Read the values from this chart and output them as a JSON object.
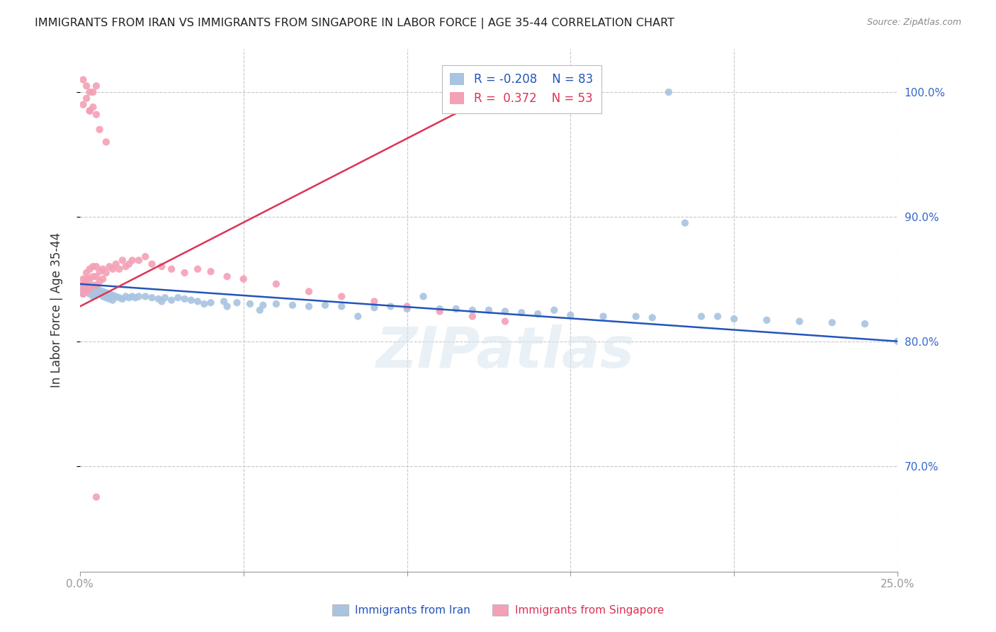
{
  "title": "IMMIGRANTS FROM IRAN VS IMMIGRANTS FROM SINGAPORE IN LABOR FORCE | AGE 35-44 CORRELATION CHART",
  "source": "Source: ZipAtlas.com",
  "ylabel": "In Labor Force | Age 35-44",
  "ytick_labels": [
    "100.0%",
    "90.0%",
    "80.0%",
    "70.0%"
  ],
  "ytick_values": [
    1.0,
    0.9,
    0.8,
    0.7
  ],
  "xlim": [
    0.0,
    0.25
  ],
  "ylim": [
    0.615,
    1.035
  ],
  "iran_color": "#a8c4e0",
  "singapore_color": "#f4a0b5",
  "iran_line_color": "#2255bb",
  "singapore_line_color": "#dd3355",
  "watermark": "ZIPatlas",
  "legend_iran_r": "-0.208",
  "legend_iran_n": "83",
  "legend_singapore_r": "0.372",
  "legend_singapore_n": "53",
  "iran_trend_x": [
    0.0,
    0.25
  ],
  "iran_trend_y": [
    0.846,
    0.8
  ],
  "singapore_trend_x": [
    0.0,
    0.135
  ],
  "singapore_trend_y": [
    0.828,
    1.01
  ],
  "iran_x": [
    0.001,
    0.001,
    0.001,
    0.002,
    0.002,
    0.002,
    0.003,
    0.003,
    0.003,
    0.004,
    0.004,
    0.004,
    0.005,
    0.005,
    0.005,
    0.006,
    0.006,
    0.007,
    0.007,
    0.008,
    0.008,
    0.009,
    0.009,
    0.01,
    0.01,
    0.011,
    0.012,
    0.013,
    0.014,
    0.015,
    0.016,
    0.017,
    0.018,
    0.02,
    0.022,
    0.024,
    0.026,
    0.028,
    0.03,
    0.032,
    0.034,
    0.036,
    0.04,
    0.044,
    0.048,
    0.052,
    0.056,
    0.06,
    0.065,
    0.07,
    0.075,
    0.08,
    0.09,
    0.1,
    0.11,
    0.12,
    0.13,
    0.14,
    0.15,
    0.16,
    0.17,
    0.175,
    0.18,
    0.19,
    0.2,
    0.21,
    0.22,
    0.23,
    0.24,
    0.25,
    0.185,
    0.195,
    0.145,
    0.105,
    0.095,
    0.085,
    0.055,
    0.045,
    0.038,
    0.025,
    0.115,
    0.125,
    0.135
  ],
  "iran_y": [
    0.838,
    0.842,
    0.845,
    0.84,
    0.843,
    0.846,
    0.838,
    0.841,
    0.844,
    0.836,
    0.84,
    0.843,
    0.837,
    0.84,
    0.843,
    0.838,
    0.841,
    0.836,
    0.84,
    0.835,
    0.839,
    0.834,
    0.838,
    0.833,
    0.837,
    0.836,
    0.835,
    0.834,
    0.836,
    0.835,
    0.836,
    0.835,
    0.836,
    0.836,
    0.835,
    0.834,
    0.835,
    0.833,
    0.835,
    0.834,
    0.833,
    0.832,
    0.831,
    0.832,
    0.831,
    0.83,
    0.829,
    0.83,
    0.829,
    0.828,
    0.829,
    0.828,
    0.827,
    0.826,
    0.826,
    0.825,
    0.824,
    0.822,
    0.821,
    0.82,
    0.82,
    0.819,
    1.0,
    0.82,
    0.818,
    0.817,
    0.816,
    0.815,
    0.814,
    0.8,
    0.895,
    0.82,
    0.825,
    0.836,
    0.828,
    0.82,
    0.825,
    0.828,
    0.83,
    0.832,
    0.826,
    0.825,
    0.823
  ],
  "singapore_x": [
    0.001,
    0.001,
    0.001,
    0.001,
    0.002,
    0.002,
    0.002,
    0.002,
    0.003,
    0.003,
    0.003,
    0.004,
    0.004,
    0.004,
    0.005,
    0.005,
    0.005,
    0.006,
    0.006,
    0.007,
    0.007,
    0.008,
    0.009,
    0.01,
    0.011,
    0.012,
    0.013,
    0.014,
    0.015,
    0.016,
    0.018,
    0.02,
    0.022,
    0.025,
    0.028,
    0.032,
    0.036,
    0.04,
    0.045,
    0.05,
    0.06,
    0.07,
    0.08,
    0.09,
    0.1,
    0.11,
    0.12,
    0.13,
    0.008,
    0.006,
    0.003,
    0.004,
    0.005
  ],
  "singapore_y": [
    0.838,
    0.842,
    0.846,
    0.85,
    0.84,
    0.845,
    0.85,
    0.855,
    0.842,
    0.85,
    0.858,
    0.845,
    0.852,
    0.86,
    0.845,
    0.852,
    0.86,
    0.848,
    0.856,
    0.85,
    0.858,
    0.855,
    0.86,
    0.858,
    0.862,
    0.858,
    0.865,
    0.86,
    0.862,
    0.865,
    0.865,
    0.868,
    0.862,
    0.86,
    0.858,
    0.855,
    0.858,
    0.856,
    0.852,
    0.85,
    0.846,
    0.84,
    0.836,
    0.832,
    0.828,
    0.824,
    0.82,
    0.816,
    0.96,
    0.97,
    0.985,
    1.0,
    1.005
  ],
  "sg_extra_x": [
    0.001,
    0.002,
    0.003,
    0.002,
    0.001,
    0.004,
    0.003,
    0.005
  ],
  "sg_extra_y": [
    1.01,
    1.005,
    1.0,
    0.995,
    0.99,
    0.988,
    0.985,
    0.982
  ],
  "sg_low_x": [
    0.005
  ],
  "sg_low_y": [
    0.675
  ]
}
